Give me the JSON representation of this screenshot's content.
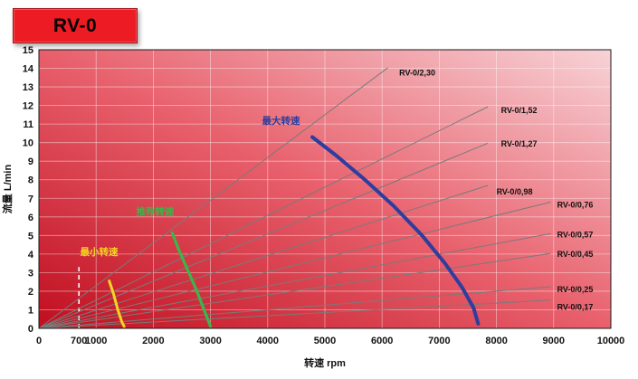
{
  "badge": {
    "label": "RV-0"
  },
  "chart_data": {
    "type": "line",
    "title": "RV-0",
    "xlabel": "转速 rpm",
    "ylabel": "流量 L/min",
    "xlim": [
      0,
      10000
    ],
    "ylim": [
      0,
      15
    ],
    "x_ticks": [
      0,
      700,
      1000,
      2000,
      3000,
      4000,
      5000,
      6000,
      7000,
      8000,
      9000,
      10000
    ],
    "y_ticks": [
      0,
      1,
      2,
      3,
      4,
      5,
      6,
      7,
      8,
      9,
      10,
      11,
      12,
      13,
      14,
      15
    ],
    "grid": true,
    "legend_position": "none",
    "background_gradient": [
      "#c00e1f",
      "#e8606c",
      "#f7d3d7"
    ],
    "grid_color": "rgba(255,255,255,0.5)",
    "displacement_line_color": "#7a7a7a",
    "displacement_lines": [
      {
        "label": "RV-0/2,30",
        "displacement_cc_per_rev": 2.3,
        "x_end": 6100,
        "label_x": 6300,
        "label_y": 13.6
      },
      {
        "label": "RV-0/1,52",
        "displacement_cc_per_rev": 1.52,
        "x_end": 7850,
        "label_x": 8080,
        "label_y": 11.6
      },
      {
        "label": "RV-0/1,27",
        "displacement_cc_per_rev": 1.27,
        "x_end": 7850,
        "label_x": 8080,
        "label_y": 9.8
      },
      {
        "label": "RV-0/0,98",
        "displacement_cc_per_rev": 0.98,
        "x_end": 7850,
        "label_x": 8000,
        "label_y": 7.2
      },
      {
        "label": "RV-0/0,76",
        "displacement_cc_per_rev": 0.76,
        "x_end": 8950,
        "label_x": 9060,
        "label_y": 6.5
      },
      {
        "label": "RV-0/0,57",
        "displacement_cc_per_rev": 0.57,
        "x_end": 8950,
        "label_x": 9060,
        "label_y": 4.9
      },
      {
        "label": "RV-0/0,45",
        "displacement_cc_per_rev": 0.45,
        "x_end": 8950,
        "label_x": 9060,
        "label_y": 3.85
      },
      {
        "label": "RV-0/0,25",
        "displacement_cc_per_rev": 0.25,
        "x_end": 8950,
        "label_x": 9060,
        "label_y": 1.95
      },
      {
        "label": "RV-0/0,17",
        "displacement_cc_per_rev": 0.17,
        "x_end": 8950,
        "label_x": 9060,
        "label_y": 1.0
      }
    ],
    "speed_curves": [
      {
        "name": "最小转速",
        "color": "#f5d521",
        "width": 3,
        "label_x": 720,
        "label_y": 3.95,
        "points": [
          [
            1230,
            2.55
          ],
          [
            1300,
            1.9
          ],
          [
            1380,
            1.0
          ],
          [
            1450,
            0.35
          ],
          [
            1490,
            0.1
          ]
        ]
      },
      {
        "name": "推荐转速",
        "color": "#3cb54a",
        "width": 3.2,
        "label_x": 1700,
        "label_y": 6.1,
        "points": [
          [
            2330,
            5.15
          ],
          [
            2450,
            4.2
          ],
          [
            2600,
            3.15
          ],
          [
            2750,
            2.1
          ],
          [
            2900,
            0.9
          ],
          [
            3000,
            0.1
          ]
        ]
      },
      {
        "name": "最大转速",
        "color": "#2e3d9e",
        "width": 4,
        "label_x": 3900,
        "label_y": 11.0,
        "points": [
          [
            4780,
            10.3
          ],
          [
            5200,
            9.3
          ],
          [
            5700,
            8.0
          ],
          [
            6200,
            6.6
          ],
          [
            6700,
            5.0
          ],
          [
            7100,
            3.5
          ],
          [
            7400,
            2.2
          ],
          [
            7600,
            1.1
          ],
          [
            7680,
            0.25
          ]
        ]
      }
    ],
    "min_speed_line": {
      "x": 700,
      "y_top": 3.3,
      "style": "dashed",
      "color": "#ffffff"
    }
  }
}
